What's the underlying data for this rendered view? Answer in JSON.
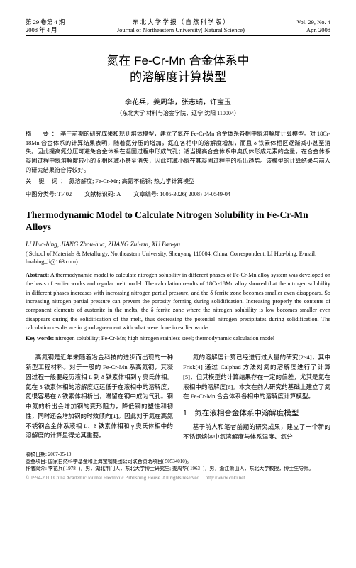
{
  "header": {
    "left_l1": "第 29 卷第 4 期",
    "left_l2": "2008 年 4 月",
    "center_l1": "东 北 大 学 学 报 （ 自 然 科 学 版 ）",
    "center_l2": "Journal of Northeastern University( Natural Science)",
    "right_l1": "Vol. 29, No. 4",
    "right_l2": "Apr. 2008"
  },
  "title_cn_l1": "氮在 Fe-Cr-Mn 合金体系中",
  "title_cn_l2": "的溶解度计算模型",
  "authors_cn": "李花兵，姜周华，张志瑞，许宝玉",
  "affil_cn": "（东北大学 材料与冶金学院，辽宁 沈阳 110004）",
  "abstract_cn_label": "摘　要：",
  "abstract_cn": "基于前期的研究成果和规则熔体模型，建立了氮在 Fe-Cr-Mn 合金体系各相中氮溶解度计算模型。对 18Cr-18Mn 合金体系的计算结果表明，随着氮分压的增加，氮在各相中的溶解度增加，而且 δ 铁素体相区逐渐减小甚至消失。因此提高氮分压可避免合金体系在凝固过程中形成气孔；适当提高合金体系中奥氏体形成元素的含量，在合金体系凝固过程中氮溶解度较小的 δ 相区减小甚至消失，因此可减小氮在其凝固过程中的析出趋势。该模型的计算结果与前人的研究结果符合得较好。",
  "keywords_cn_label": "关 键 词：",
  "keywords_cn": "氮溶解度; Fe-Cr-Mn; 高氮不锈钢; 热力学计算模型",
  "class_l": "中图分类号: TF 02",
  "class_m": "文献标识码: A",
  "class_r": "文章编号: 1005-3026( 2008) 04-0549-04",
  "title_en": "Thermodynamic Model to Calculate Nitrogen Solubility in Fe-Cr-Mn Alloys",
  "authors_en": "LI Hua-bing, JIANG Zhou-hua, ZHANG Zui-rui, XU Bao-yu",
  "affil_en": "( School of Materials & Metallurgy, Northeastern University, Shenyang 110004, China. Correspondent: LI Hua-bing, E-mail: huabing_li@163.com)",
  "abstract_en_label": "Abstract:",
  "abstract_en": " A thermodynamic model to calculate nitrogen solubility in different phases of Fe-Cr-Mn alloy system was developed on the basis of earlier works and regular melt model. The calculation results of 18Cr-18Mn alloy showed that the nitrogen solubility in different phases increases with increasing nitrogen partial pressure, and the δ ferrite zone becomes smaller even disappears. So increasing nitrogen partial pressure can prevent the porosity forming during solidification. Increasing properly the contents of component elements of austenite in the melts, the δ ferrite zone where the nitrogen solubility is low becomes smaller even disappears during the solidification of the melt, thus decreasing the potential nitrogen precipitates during solidification. The calculation results are in good agreement with what were done in earlier works.",
  "keywords_en_label": "Key words:",
  "keywords_en": " nitrogen solubility; Fe-Cr-Mn; high nitrogen stainless steel; thermodynamic calculation model",
  "body_left": "高氮钢是近年来随着冶金科技的进步而出现的一种新型工程材料。对于一般的 Fe-Cr-Mn 系高氮钢，其凝固过程一般要经历液相 L 到 δ 铁素体相到 γ 奥氏体相。氮在 δ 铁素体相的溶解度远远低于在液相中的溶解度，氮很容易在 δ 铁素体相析出，滞留在钢中成为气孔。钢中氮的析出会增加钢的变形阻力，降低钢的塑性和韧性，同时还会增加钢的时效倾向[1]。因此对于氮在高氮不锈钢合金体系液相 L、δ 铁素体相和 γ 奥氏体相中的溶解度的计算显得尤其重要。",
  "body_right_p1": "氮的溶解度计算已经进行过大量的研究[2~4]，其中 Frisk[4] 通过 Calphad 方法对氮的溶解度进行了计算[5]，但其模型的计算结果存在一定的偏差，尤其是氮在液相中的溶解度[6]。本文在前人研究的基础上建立了氮在 Fe-Cr-Mn 合金体系各相中的溶解度计算模型。",
  "sec_num": "1",
  "sec_title": "氮在液相合金体系中溶解度模型",
  "body_right_p2": "基于前人和笔者前期的研究成果，建立了一个新的不锈钢熔体中氮溶解度与体系温度、氮分",
  "footer_l1": "收稿日期: 2007-05-10",
  "footer_l2": "基金项目: 国家自然科学基金和上海宝钢集团公司联合资助项目( 50534010)。",
  "footer_l3": "作者简介: 李花兵( 1978- )，男，湖北荆门人，东北大学博士研究生; 姜周华( 1963- )，男，浙江萧山人，东北大学教授，博士生导师。",
  "watermark": "© 1994-2010 China Academic Journal Electronic Publishing House. All rights reserved.　http://www.cnki.net"
}
